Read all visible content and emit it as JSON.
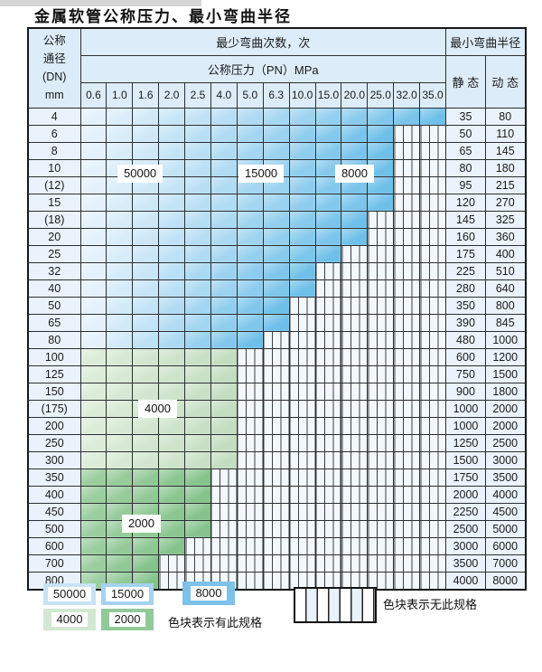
{
  "title": "金属软管公称压力、最小弯曲半径",
  "table": {
    "corner_lines": [
      "公称",
      "通径",
      "(DN)",
      "mm"
    ],
    "bend_cycles_header": "最少弯曲次数，次",
    "pressure_header": "公称压力（PN）MPa",
    "radius_header": "最小弯曲半径",
    "static_header": "静 态",
    "dynamic_header": "动 态",
    "pressure_columns": [
      "0.6",
      "1.0",
      "1.6",
      "2.0",
      "2.5",
      "4.0",
      "5.0",
      "6.3",
      "10.0",
      "15.0",
      "20.0",
      "25.0",
      "32.0",
      "35.0"
    ],
    "rows": [
      {
        "dn": "4",
        "span": 14,
        "zone": "blue",
        "colored_through": "35.0",
        "static": "35",
        "dynamic": "80"
      },
      {
        "dn": "6",
        "span": 12,
        "zone": "blue",
        "colored_through": "25.0",
        "static": "50",
        "dynamic": "110"
      },
      {
        "dn": "8",
        "span": 12,
        "zone": "blue",
        "colored_through": "25.0",
        "static": "65",
        "dynamic": "145"
      },
      {
        "dn": "10",
        "span": 12,
        "zone": "blue",
        "colored_through": "25.0",
        "static": "80",
        "dynamic": "180"
      },
      {
        "dn": "(12)",
        "span": 12,
        "zone": "blue",
        "colored_through": "25.0",
        "static": "95",
        "dynamic": "215"
      },
      {
        "dn": "15",
        "span": 12,
        "zone": "blue",
        "colored_through": "25.0",
        "static": "120",
        "dynamic": "270"
      },
      {
        "dn": "(18)",
        "span": 11,
        "zone": "blue",
        "colored_through": "20.0",
        "static": "145",
        "dynamic": "325"
      },
      {
        "dn": "20",
        "span": 11,
        "zone": "blue",
        "colored_through": "20.0",
        "static": "160",
        "dynamic": "360"
      },
      {
        "dn": "25",
        "span": 10,
        "zone": "blue",
        "colored_through": "15.0",
        "static": "175",
        "dynamic": "400"
      },
      {
        "dn": "32",
        "span": 9,
        "zone": "blue",
        "colored_through": "10.0",
        "static": "225",
        "dynamic": "510"
      },
      {
        "dn": "40",
        "span": 9,
        "zone": "blue",
        "colored_through": "10.0",
        "static": "280",
        "dynamic": "640"
      },
      {
        "dn": "50",
        "span": 8,
        "zone": "blue",
        "colored_through": "6.3",
        "static": "350",
        "dynamic": "800"
      },
      {
        "dn": "65",
        "span": 8,
        "zone": "blue",
        "colored_through": "6.3",
        "static": "390",
        "dynamic": "845"
      },
      {
        "dn": "80",
        "span": 7,
        "zone": "blue",
        "colored_through": "5.0",
        "static": "480",
        "dynamic": "1000"
      },
      {
        "dn": "100",
        "span": 6,
        "zone": "green_light",
        "colored_through": "4.0",
        "static": "600",
        "dynamic": "1200"
      },
      {
        "dn": "125",
        "span": 6,
        "zone": "green_light",
        "colored_through": "4.0",
        "static": "750",
        "dynamic": "1500"
      },
      {
        "dn": "150",
        "span": 6,
        "zone": "green_light",
        "colored_through": "4.0",
        "static": "900",
        "dynamic": "1800"
      },
      {
        "dn": "(175)",
        "span": 6,
        "zone": "green_light",
        "colored_through": "4.0",
        "static": "1000",
        "dynamic": "2000"
      },
      {
        "dn": "200",
        "span": 6,
        "zone": "green_light",
        "colored_through": "4.0",
        "static": "1000",
        "dynamic": "2000"
      },
      {
        "dn": "250",
        "span": 6,
        "zone": "green_light",
        "colored_through": "4.0",
        "static": "1250",
        "dynamic": "2500"
      },
      {
        "dn": "300",
        "span": 6,
        "zone": "green_light",
        "colored_through": "4.0",
        "static": "1500",
        "dynamic": "3000"
      },
      {
        "dn": "350",
        "span": 5,
        "zone": "green_mid",
        "colored_through": "2.5",
        "static": "1750",
        "dynamic": "3500"
      },
      {
        "dn": "400",
        "span": 5,
        "zone": "green_mid",
        "colored_through": "2.5",
        "static": "2000",
        "dynamic": "4000"
      },
      {
        "dn": "450",
        "span": 5,
        "zone": "green_mid",
        "colored_through": "2.5",
        "static": "2250",
        "dynamic": "4500"
      },
      {
        "dn": "500",
        "span": 5,
        "zone": "green_mid",
        "colored_through": "2.5",
        "static": "2500",
        "dynamic": "5000"
      },
      {
        "dn": "600",
        "span": 4,
        "zone": "green_mid",
        "colored_through": "2.0",
        "static": "3000",
        "dynamic": "6000"
      },
      {
        "dn": "700",
        "span": 3,
        "zone": "green_mid",
        "colored_through": "1.6",
        "static": "3500",
        "dynamic": "7000"
      },
      {
        "dn": "800",
        "span": 3,
        "zone": "green_mid",
        "colored_through": "1.6",
        "static": "4000",
        "dynamic": "8000"
      }
    ]
  },
  "overlays": [
    {
      "text": "50000"
    },
    {
      "text": "15000"
    },
    {
      "text": "8000"
    },
    {
      "text": "4000"
    },
    {
      "text": "2000"
    }
  ],
  "legend": {
    "items": [
      {
        "label": "50000",
        "color": "#c7e3f4"
      },
      {
        "label": "15000",
        "color": "#a3d3ee"
      },
      {
        "label": "8000",
        "color": "#7cc2e9"
      },
      {
        "label": "4000",
        "color": "#d3e8d2"
      },
      {
        "label": "2000",
        "color": "#92c999"
      }
    ],
    "has_spec_note": "色块表示有此规格",
    "no_spec_note": "色块表示无此规格"
  },
  "colors": {
    "blue_start": "#e4f1fb",
    "blue_end": "#6fc0e9",
    "green_light_start": "#dcecd9",
    "green_light_end": "#c3ddc0",
    "green_mid_start": "#9bce9f",
    "green_mid_end": "#86c38c",
    "header_bg": "#dcecf8",
    "side_bg": "#eaf3fb"
  }
}
